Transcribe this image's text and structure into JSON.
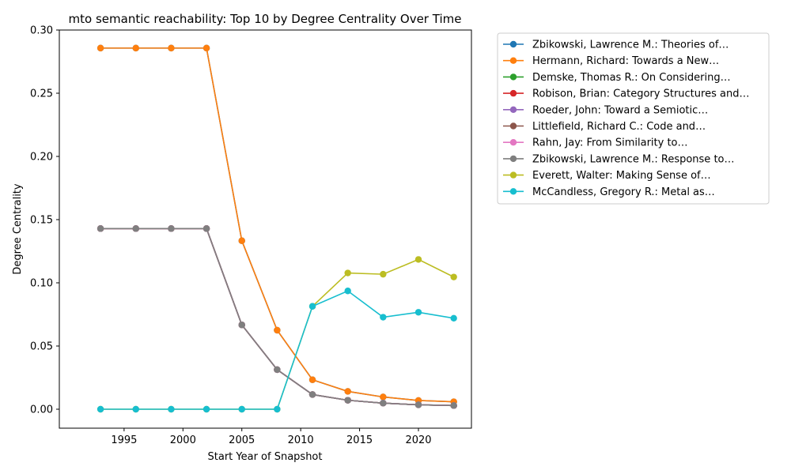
{
  "chart_data": {
    "type": "line",
    "title": "mto semantic reachability: Top 10 by Degree Centrality Over Time",
    "xlabel": "Start Year of Snapshot",
    "ylabel": "Degree Centrality",
    "xlim": [
      1989.5,
      2024.5
    ],
    "ylim": [
      -0.015,
      0.3
    ],
    "x_ticks": [
      "1995",
      "2000",
      "2005",
      "2010",
      "2015",
      "2020"
    ],
    "y_ticks": [
      "0.00",
      "0.05",
      "0.10",
      "0.15",
      "0.20",
      "0.25",
      "0.30"
    ],
    "grid": false,
    "legend_position": "outside-right",
    "x": [
      1993,
      1996,
      1999,
      2002,
      2005,
      2008,
      2011,
      2014,
      2017,
      2020,
      2023
    ],
    "series": [
      {
        "name": "Zbikowski, Lawrence M.: Theories of…",
        "color": "#1f77b4",
        "values": [
          0.2857,
          0.2857,
          0.2857,
          0.2857,
          0.1333,
          0.0625,
          0.0233,
          0.0141,
          0.0097,
          0.0069,
          0.0059
        ]
      },
      {
        "name": "Hermann, Richard: Towards a New…",
        "color": "#ff7f0e",
        "values": [
          0.2857,
          0.2857,
          0.2857,
          0.2857,
          0.1333,
          0.0625,
          0.0233,
          0.0141,
          0.0097,
          0.0069,
          0.0059
        ]
      },
      {
        "name": "Demske, Thomas R.: On Considering…",
        "color": "#2ca02c",
        "values": [
          0.1429,
          0.1429,
          0.1429,
          0.1429,
          0.0667,
          0.0313,
          0.0116,
          0.0071,
          0.0048,
          0.0035,
          0.0029
        ]
      },
      {
        "name": "Robison, Brian: Category Structures and…",
        "color": "#d62728",
        "values": [
          0.1429,
          0.1429,
          0.1429,
          0.1429,
          0.0667,
          0.0313,
          0.0116,
          0.0071,
          0.0048,
          0.0035,
          0.0029
        ]
      },
      {
        "name": "Roeder, John: Toward a Semiotic…",
        "color": "#9467bd",
        "values": [
          0.1429,
          0.1429,
          0.1429,
          0.1429,
          0.0667,
          0.0313,
          0.0116,
          0.0071,
          0.0048,
          0.0035,
          0.0029
        ]
      },
      {
        "name": "Littlefield, Richard C.: Code and…",
        "color": "#8c564b",
        "values": [
          0.1429,
          0.1429,
          0.1429,
          0.1429,
          0.0667,
          0.0313,
          0.0116,
          0.0071,
          0.0048,
          0.0035,
          0.0029
        ]
      },
      {
        "name": "Rahn, Jay: From Similarity to…",
        "color": "#e377c2",
        "values": [
          0.1429,
          0.1429,
          0.1429,
          0.1429,
          0.0667,
          0.0313,
          0.0116,
          0.0071,
          0.0048,
          0.0035,
          0.0029
        ]
      },
      {
        "name": "Zbikowski, Lawrence M.: Response to…",
        "color": "#7f7f7f",
        "values": [
          0.1429,
          0.1429,
          0.1429,
          0.1429,
          0.0667,
          0.0313,
          0.0116,
          0.0071,
          0.0048,
          0.0035,
          0.0029
        ]
      },
      {
        "name": "Everett, Walter: Making Sense of…",
        "color": "#bcbd22",
        "values": [
          0,
          0,
          0,
          0,
          0,
          0,
          0.0814,
          0.1078,
          0.1068,
          0.1185,
          0.1046
        ]
      },
      {
        "name": "McCandless, Gregory R.: Metal as…",
        "color": "#17becf",
        "values": [
          0,
          0,
          0,
          0,
          0,
          0,
          0.0814,
          0.0936,
          0.0728,
          0.0767,
          0.072
        ]
      }
    ]
  }
}
